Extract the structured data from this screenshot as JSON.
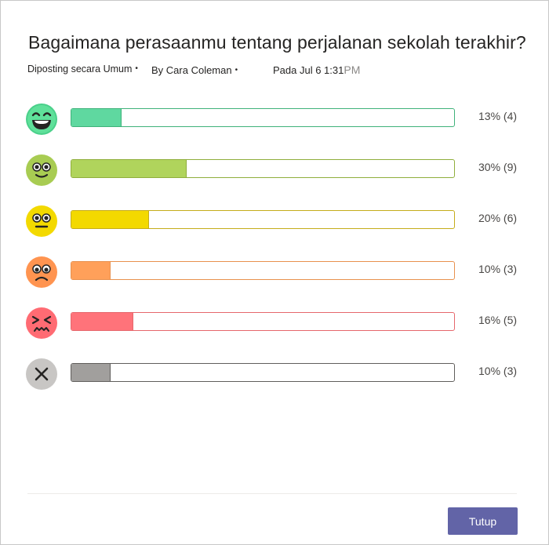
{
  "poll": {
    "question": "Bagaimana perasaanmu tentang perjalanan sekolah terakhir?",
    "posted_label": "Diposting secara Umum",
    "author_label": "By Cara Coleman",
    "date_label": "Pada Jul 6 1:31",
    "time_suffix": "PM",
    "bullet": "•",
    "options": [
      {
        "icon": "grinning-face-icon",
        "fraction": 0.13,
        "result": "13% (4)",
        "fill": "#5fd8a0",
        "border": "#3fb27a"
      },
      {
        "icon": "smiling-face-icon",
        "fraction": 0.3,
        "result": "30% (9)",
        "fill": "#b0d45c",
        "border": "#8fae3c"
      },
      {
        "icon": "neutral-face-icon",
        "fraction": 0.2,
        "result": "20% (6)",
        "fill": "#f3d900",
        "border": "#c5ac1a"
      },
      {
        "icon": "frowning-face-icon",
        "fraction": 0.1,
        "result": "10% (3)",
        "fill": "#ffa05a",
        "border": "#e8914e"
      },
      {
        "icon": "tired-face-icon",
        "fraction": 0.16,
        "result": "16% (5)",
        "fill": "#ff737a",
        "border": "#e6676c"
      },
      {
        "icon": "no-answer-x-icon",
        "fraction": 0.1,
        "result": "10% (3)",
        "fill": "#a19f9d",
        "border": "#605e5c"
      }
    ]
  },
  "footer": {
    "close_label": "Tutup"
  }
}
